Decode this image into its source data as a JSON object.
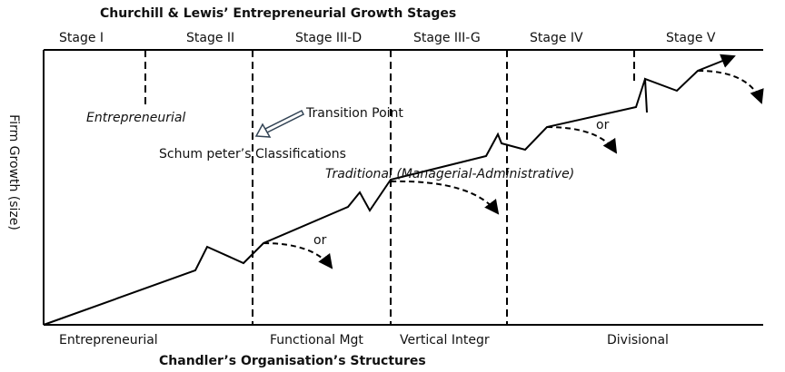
{
  "header": {
    "title": "Churchill & Lewis’ Entrepreneurial Growth Stages"
  },
  "stages": [
    "Stage I",
    "Stage II",
    "Stage III-D",
    "Stage III-G",
    "Stage IV",
    "Stage V"
  ],
  "y_axis_label": "Firm Growth (size)",
  "annotations": {
    "entrepreneurial": "Entrepreneurial",
    "transition": "Transition Point",
    "schumpeter": "Schum peter’s Classifications",
    "traditional": "Traditional (Managerial-Administrative)",
    "or_1": "or",
    "or_2": "or"
  },
  "structures": [
    "Entrepreneurial",
    "Functional Mgt",
    "Vertical Integr",
    "Divisional"
  ],
  "footer": {
    "title": "Chandler’s Organisation’s Structures"
  }
}
